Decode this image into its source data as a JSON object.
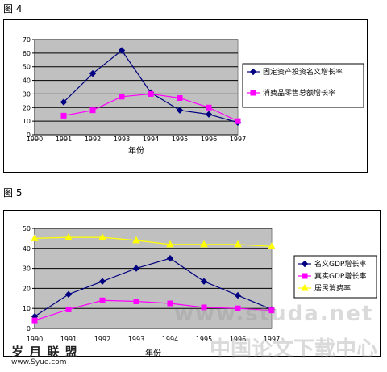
{
  "figure_labels": [
    "图 4",
    "图 5"
  ],
  "watermark": {
    "site_text": "岁 月 联 盟",
    "site_url": "www.Syue.com",
    "overlay_url": "www.studa.net",
    "overlay_cn": "中国论文下载中心"
  },
  "colors": {
    "plot_bg": "#c0c0c0",
    "series_blue": "#000080",
    "series_magenta": "#ff00ff",
    "series_yellow": "#ffff00"
  },
  "chart_data": [
    {
      "type": "line",
      "xlabel": "年份",
      "ylabel": "",
      "ylim": [
        0,
        70
      ],
      "yticks": [
        0,
        10,
        20,
        30,
        40,
        50,
        60,
        70
      ],
      "x_ticks": [
        "1990",
        "1991",
        "1992",
        "1993",
        "1994",
        "1995",
        "1996",
        "1997"
      ],
      "grid": true,
      "legend_position": "right",
      "series": [
        {
          "name": "固定资产投资名义增长率",
          "marker": "diamond",
          "color": "#000080",
          "x": [
            "1991",
            "1992",
            "1993",
            "1994",
            "1995",
            "1996",
            "1997"
          ],
          "values": [
            24,
            45,
            62,
            31,
            18,
            15,
            9
          ]
        },
        {
          "name": "消费品零售总额增长率",
          "marker": "square",
          "color": "#ff00ff",
          "x": [
            "1991",
            "1992",
            "1993",
            "1994",
            "1995",
            "1996",
            "1997"
          ],
          "values": [
            14,
            18,
            28,
            30,
            27,
            20,
            10
          ]
        }
      ]
    },
    {
      "type": "line",
      "xlabel": "年份",
      "ylabel": "",
      "ylim": [
        0,
        50
      ],
      "yticks": [
        0,
        10,
        20,
        30,
        40,
        50
      ],
      "x_ticks": [
        "1990",
        "1991",
        "1992",
        "1993",
        "1994",
        "1995",
        "1996",
        "1997"
      ],
      "grid": true,
      "legend_position": "right",
      "series": [
        {
          "name": "名义GDP增长率",
          "marker": "diamond",
          "color": "#000080",
          "x": [
            "1990",
            "1991",
            "1992",
            "1993",
            "1994",
            "1995",
            "1996",
            "1997"
          ],
          "values": [
            6,
            17,
            23.5,
            30,
            35,
            23.5,
            16.5,
            9.5
          ]
        },
        {
          "name": "真实GDP增长率",
          "marker": "square",
          "color": "#ff00ff",
          "x": [
            "1990",
            "1991",
            "1992",
            "1993",
            "1994",
            "1995",
            "1996",
            "1997"
          ],
          "values": [
            4,
            9.5,
            14,
            13.5,
            12.5,
            10.5,
            10,
            9
          ]
        },
        {
          "name": "居民消费率",
          "marker": "triangle",
          "color": "#ffff00",
          "x": [
            "1990",
            "1991",
            "1992",
            "1993",
            "1994",
            "1995",
            "1996",
            "1997"
          ],
          "values": [
            45,
            45.5,
            45.5,
            44,
            42,
            42,
            42,
            41
          ]
        }
      ]
    }
  ]
}
